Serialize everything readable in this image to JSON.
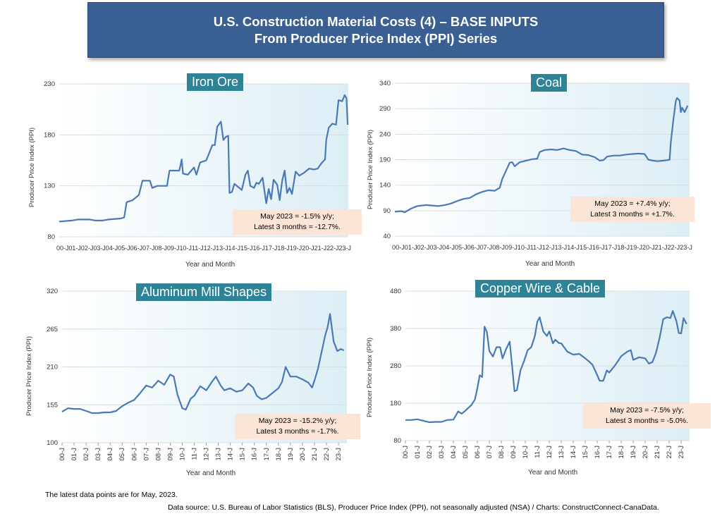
{
  "banner": {
    "line1": "U.S. Construction Material Costs (4) – BASE INPUTS",
    "line2": "From Producer Price Index (PPI) Series"
  },
  "footer": {
    "note": "The latest data points are for May, 2023.",
    "source": "Data source: U.S. Bureau of Labor Statistics (BLS), Producer Price Index (PPI), not seasonally adjusted (NSA) / Charts: ConstructConnect-CanaData."
  },
  "colors": {
    "line": "#4a79b5",
    "title_bg": "#2e8496",
    "note_bg": "#fce4d6",
    "banner_bg": "#3a5f93"
  },
  "chart_data": [
    {
      "type": "line",
      "title": "Iron Ore",
      "ylabel": "Producer Price Index (PPI)",
      "xlabel": "Year and Month",
      "ylim": [
        80,
        230
      ],
      "yticks": [
        80,
        130,
        180,
        230
      ],
      "xtick_style": "inline",
      "xticks_inline": "00-J01-J02-J03-J04-J05-J06-J07-J08-J09-J10-J11-J12-J13-J14-J15-J16-J17-J18-J19-J20-J21-J22-J23-J",
      "annotation": [
        "May 2023 = -1.5% y/y;",
        "Latest 3 months = -12.7%."
      ],
      "points": [
        [
          2000,
          95
        ],
        [
          2001,
          96
        ],
        [
          2001.5,
          97
        ],
        [
          2002.5,
          97
        ],
        [
          2003,
          96
        ],
        [
          2003.5,
          96
        ],
        [
          2004,
          97
        ],
        [
          2005,
          98
        ],
        [
          2005.3,
          99
        ],
        [
          2005.5,
          114
        ],
        [
          2006,
          116
        ],
        [
          2006.5,
          121
        ],
        [
          2006.8,
          135
        ],
        [
          2007.4,
          135
        ],
        [
          2007.6,
          128
        ],
        [
          2008,
          130
        ],
        [
          2008.8,
          130
        ],
        [
          2009,
          145
        ],
        [
          2009.8,
          145
        ],
        [
          2010,
          156
        ],
        [
          2010.1,
          142
        ],
        [
          2010.5,
          141
        ],
        [
          2011,
          148
        ],
        [
          2011.2,
          141
        ],
        [
          2011.5,
          153
        ],
        [
          2012,
          155
        ],
        [
          2012.5,
          170
        ],
        [
          2012.7,
          170
        ],
        [
          2012.9,
          188
        ],
        [
          2013.2,
          193
        ],
        [
          2013.4,
          175
        ],
        [
          2013.6,
          178
        ],
        [
          2013.8,
          179
        ],
        [
          2013.9,
          123
        ],
        [
          2014.1,
          124
        ],
        [
          2014.3,
          132
        ],
        [
          2014.6,
          129
        ],
        [
          2014.9,
          126
        ],
        [
          2015.2,
          141
        ],
        [
          2015.4,
          145
        ],
        [
          2015.6,
          130
        ],
        [
          2015.9,
          128
        ],
        [
          2016.1,
          133
        ],
        [
          2016.3,
          132
        ],
        [
          2016.6,
          138
        ],
        [
          2016.9,
          113
        ],
        [
          2017.1,
          127
        ],
        [
          2017.3,
          117
        ],
        [
          2017.5,
          136
        ],
        [
          2017.8,
          131
        ],
        [
          2018,
          116
        ],
        [
          2018.2,
          135
        ],
        [
          2018.4,
          145
        ],
        [
          2018.6,
          123
        ],
        [
          2018.8,
          128
        ],
        [
          2019,
          122
        ],
        [
          2019.3,
          144
        ],
        [
          2019.6,
          140
        ],
        [
          2020,
          143
        ],
        [
          2020.4,
          147
        ],
        [
          2020.8,
          146
        ],
        [
          2021.1,
          147
        ],
        [
          2021.4,
          152
        ],
        [
          2021.7,
          156
        ],
        [
          2021.8,
          175
        ],
        [
          2022,
          187
        ],
        [
          2022.3,
          191
        ],
        [
          2022.6,
          190
        ],
        [
          2022.8,
          214
        ],
        [
          2023.1,
          213
        ],
        [
          2023.3,
          219
        ],
        [
          2023.45,
          216
        ],
        [
          2023.55,
          190
        ]
      ]
    },
    {
      "type": "line",
      "title": "Coal",
      "ylabel": "Producer Price Index (PPI)",
      "xlabel": "Year and Month",
      "ylim": [
        40,
        340
      ],
      "yticks": [
        40,
        90,
        140,
        190,
        240,
        290,
        340
      ],
      "xtick_style": "inline",
      "xticks_inline": "00-J01-J02-J03-J04-J05-J06-J07-J08-J09-J10-J11-J12-J13-J14-J15-J16-J17-J18-J19-J20-J21-J22-J23-J",
      "annotation": [
        "May 2023 = +7.4% y/y;",
        "Latest 3 months = +1.7%."
      ],
      "points": [
        [
          2000,
          88
        ],
        [
          2000.5,
          89
        ],
        [
          2000.8,
          87
        ],
        [
          2001.3,
          94
        ],
        [
          2001.8,
          99
        ],
        [
          2002.5,
          101
        ],
        [
          2003,
          100
        ],
        [
          2003.5,
          99
        ],
        [
          2004,
          101
        ],
        [
          2004.5,
          104
        ],
        [
          2005,
          109
        ],
        [
          2005.5,
          113
        ],
        [
          2006,
          115
        ],
        [
          2006.5,
          122
        ],
        [
          2007,
          127
        ],
        [
          2007.5,
          130
        ],
        [
          2008,
          129
        ],
        [
          2008.4,
          135
        ],
        [
          2008.6,
          152
        ],
        [
          2008.9,
          168
        ],
        [
          2009.2,
          184
        ],
        [
          2009.4,
          185
        ],
        [
          2009.6,
          177
        ],
        [
          2010,
          185
        ],
        [
          2010.5,
          188
        ],
        [
          2011,
          191
        ],
        [
          2011.4,
          192
        ],
        [
          2011.6,
          205
        ],
        [
          2012,
          209
        ],
        [
          2012.5,
          210
        ],
        [
          2013,
          209
        ],
        [
          2013.5,
          212
        ],
        [
          2014,
          209
        ],
        [
          2014.5,
          207
        ],
        [
          2015,
          200
        ],
        [
          2015.5,
          199
        ],
        [
          2016,
          195
        ],
        [
          2016.4,
          188
        ],
        [
          2016.7,
          189
        ],
        [
          2017,
          196
        ],
        [
          2017.5,
          198
        ],
        [
          2018,
          198
        ],
        [
          2018.5,
          200
        ],
        [
          2019,
          201
        ],
        [
          2019.5,
          202
        ],
        [
          2020,
          201
        ],
        [
          2020.3,
          190
        ],
        [
          2020.7,
          188
        ],
        [
          2021,
          187
        ],
        [
          2021.5,
          188
        ],
        [
          2021.8,
          189
        ],
        [
          2022,
          190
        ],
        [
          2022.1,
          224
        ],
        [
          2022.3,
          268
        ],
        [
          2022.5,
          305
        ],
        [
          2022.6,
          311
        ],
        [
          2022.8,
          306
        ],
        [
          2022.9,
          283
        ],
        [
          2023,
          292
        ],
        [
          2023.2,
          283
        ],
        [
          2023.45,
          296
        ]
      ]
    },
    {
      "type": "line",
      "title": "Aluminum Mill Shapes",
      "ylabel": "Producer Price Index (PPI)",
      "xlabel": "Year and Month",
      "ylim": [
        100,
        320
      ],
      "yticks": [
        100,
        155,
        210,
        265,
        320
      ],
      "xtick_style": "rotated",
      "xticks": [
        "00-J",
        "01-J",
        "02-J",
        "03-J",
        "04-J",
        "05-J",
        "06-J",
        "07-J",
        "08-J",
        "09-J",
        "10-J",
        "11-J",
        "12-J",
        "13-J",
        "14-J",
        "15-J",
        "16-J",
        "17-J",
        "18-J",
        "19-J",
        "20-J",
        "21-J",
        "22-J",
        "23-J"
      ],
      "annotation": [
        "May 2023 = -15.2% y/y;",
        "Latest 3 months = -1.7%."
      ],
      "points": [
        [
          2000,
          145
        ],
        [
          2000.5,
          150
        ],
        [
          2001,
          149
        ],
        [
          2001.5,
          149
        ],
        [
          2002,
          146
        ],
        [
          2002.5,
          143
        ],
        [
          2003,
          143
        ],
        [
          2003.5,
          144
        ],
        [
          2004,
          144
        ],
        [
          2004.5,
          146
        ],
        [
          2005,
          153
        ],
        [
          2005.5,
          158
        ],
        [
          2006,
          162
        ],
        [
          2006.5,
          172
        ],
        [
          2007,
          183
        ],
        [
          2007.5,
          180
        ],
        [
          2008,
          190
        ],
        [
          2008.5,
          184
        ],
        [
          2009,
          199
        ],
        [
          2009.3,
          196
        ],
        [
          2009.6,
          170
        ],
        [
          2010,
          150
        ],
        [
          2010.3,
          148
        ],
        [
          2010.7,
          164
        ],
        [
          2011,
          168
        ],
        [
          2011.5,
          182
        ],
        [
          2012,
          176
        ],
        [
          2012.5,
          189
        ],
        [
          2012.8,
          196
        ],
        [
          2013.2,
          183
        ],
        [
          2013.5,
          176
        ],
        [
          2014,
          179
        ],
        [
          2014.5,
          174
        ],
        [
          2015,
          176
        ],
        [
          2015.5,
          186
        ],
        [
          2015.9,
          180
        ],
        [
          2016.2,
          168
        ],
        [
          2016.6,
          163
        ],
        [
          2017,
          165
        ],
        [
          2017.5,
          172
        ],
        [
          2018,
          179
        ],
        [
          2018.3,
          188
        ],
        [
          2018.6,
          210
        ],
        [
          2019,
          196
        ],
        [
          2019.5,
          196
        ],
        [
          2020,
          192
        ],
        [
          2020.5,
          187
        ],
        [
          2020.8,
          180
        ],
        [
          2021,
          190
        ],
        [
          2021.3,
          208
        ],
        [
          2021.6,
          232
        ],
        [
          2021.9,
          256
        ],
        [
          2022.1,
          268
        ],
        [
          2022.3,
          287
        ],
        [
          2022.6,
          247
        ],
        [
          2022.9,
          233
        ],
        [
          2023.2,
          236
        ],
        [
          2023.45,
          234
        ]
      ]
    },
    {
      "type": "line",
      "title": "Copper Wire & Cable",
      "ylabel": "Producer Price Index (PPI)",
      "xlabel": "Year and Month",
      "ylim": [
        80,
        480
      ],
      "yticks": [
        80,
        180,
        280,
        380,
        480
      ],
      "xtick_style": "rotated",
      "xticks": [
        "00-J",
        "01-J",
        "02-J",
        "03-J",
        "04-J",
        "05-J",
        "06-J",
        "07-J",
        "08-J",
        "09-J",
        "10-J",
        "11-J",
        "12-J",
        "13-J",
        "14-J",
        "15-J",
        "16-J",
        "17-J",
        "18-J",
        "19-J",
        "20-J",
        "21-J",
        "22-J",
        "23-J"
      ],
      "annotation": [
        "May 2023 = -7.5% y/y;",
        "Latest 3 months = -5.0%."
      ],
      "points": [
        [
          2000,
          135
        ],
        [
          2000.5,
          135
        ],
        [
          2001,
          137
        ],
        [
          2001.5,
          133
        ],
        [
          2002,
          129
        ],
        [
          2002.5,
          130
        ],
        [
          2003,
          130
        ],
        [
          2003.5,
          135
        ],
        [
          2004,
          136
        ],
        [
          2004.4,
          158
        ],
        [
          2004.7,
          152
        ],
        [
          2005,
          160
        ],
        [
          2005.5,
          175
        ],
        [
          2005.8,
          190
        ],
        [
          2006,
          220
        ],
        [
          2006.2,
          255
        ],
        [
          2006.4,
          250
        ],
        [
          2006.6,
          385
        ],
        [
          2006.8,
          370
        ],
        [
          2007,
          320
        ],
        [
          2007.3,
          305
        ],
        [
          2007.6,
          330
        ],
        [
          2007.9,
          330
        ],
        [
          2008.1,
          300
        ],
        [
          2008.4,
          325
        ],
        [
          2008.7,
          345
        ],
        [
          2008.9,
          280
        ],
        [
          2009.1,
          212
        ],
        [
          2009.3,
          215
        ],
        [
          2009.6,
          268
        ],
        [
          2009.9,
          293
        ],
        [
          2010.2,
          322
        ],
        [
          2010.5,
          330
        ],
        [
          2010.8,
          360
        ],
        [
          2011,
          398
        ],
        [
          2011.2,
          410
        ],
        [
          2011.5,
          372
        ],
        [
          2011.8,
          360
        ],
        [
          2012,
          372
        ],
        [
          2012.3,
          340
        ],
        [
          2012.5,
          350
        ],
        [
          2012.8,
          341
        ],
        [
          2013,
          340
        ],
        [
          2013.5,
          318
        ],
        [
          2014,
          310
        ],
        [
          2014.5,
          312
        ],
        [
          2015,
          300
        ],
        [
          2015.3,
          292
        ],
        [
          2015.6,
          283
        ],
        [
          2015.9,
          262
        ],
        [
          2016.2,
          240
        ],
        [
          2016.5,
          240
        ],
        [
          2016.8,
          268
        ],
        [
          2017,
          262
        ],
        [
          2017.5,
          282
        ],
        [
          2018,
          306
        ],
        [
          2018.5,
          318
        ],
        [
          2018.8,
          322
        ],
        [
          2019,
          296
        ],
        [
          2019.5,
          303
        ],
        [
          2020,
          300
        ],
        [
          2020.3,
          286
        ],
        [
          2020.6,
          290
        ],
        [
          2020.9,
          315
        ],
        [
          2021.2,
          355
        ],
        [
          2021.5,
          405
        ],
        [
          2021.8,
          410
        ],
        [
          2022.1,
          408
        ],
        [
          2022.3,
          427
        ],
        [
          2022.6,
          400
        ],
        [
          2022.8,
          368
        ],
        [
          2023.0,
          367
        ],
        [
          2023.2,
          408
        ],
        [
          2023.45,
          392
        ]
      ]
    }
  ]
}
